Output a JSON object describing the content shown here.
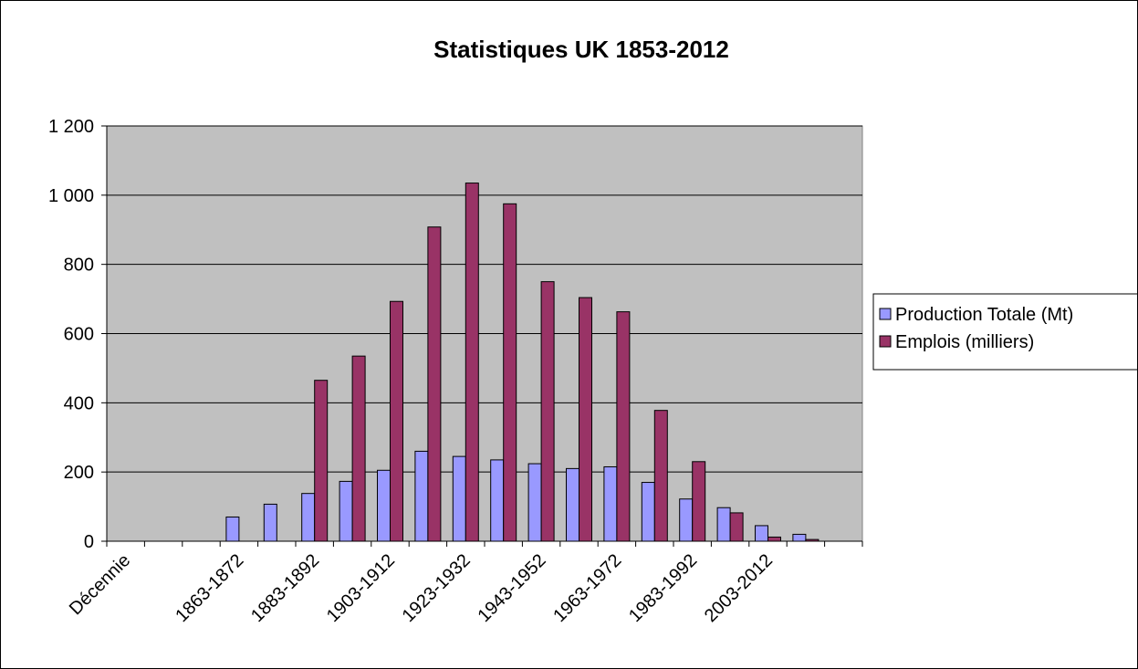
{
  "chart_data": {
    "type": "bar",
    "title": "Statistiques UK 1853-2012",
    "xlabel": "",
    "ylabel": "",
    "ylim": [
      0,
      1200
    ],
    "yticks": [
      0,
      200,
      400,
      600,
      800,
      1000,
      1200
    ],
    "ytick_labels": [
      "0",
      "200",
      "400",
      "600",
      "800",
      "1 000",
      "1 200"
    ],
    "grid": true,
    "legend_position": "right",
    "categories": [
      "Décennie",
      "",
      "",
      "1863-1872",
      "",
      "1883-1892",
      "",
      "1903-1912",
      "",
      "1923-1932",
      "",
      "1943-1952",
      "",
      "1963-1972",
      "",
      "1983-1992",
      "",
      "2003-2012",
      "",
      ""
    ],
    "series": [
      {
        "name": "Production Totale (Mt)",
        "color": "#9999ff",
        "values": [
          null,
          null,
          null,
          70,
          107,
          138,
          173,
          205,
          260,
          245,
          235,
          224,
          210,
          215,
          170,
          122,
          97,
          45,
          20,
          null
        ]
      },
      {
        "name": "Emplois (milliers)",
        "color": "#993366",
        "values": [
          null,
          null,
          null,
          null,
          null,
          465,
          535,
          693,
          908,
          1035,
          975,
          750,
          704,
          663,
          378,
          230,
          82,
          12,
          5,
          null
        ]
      }
    ]
  }
}
